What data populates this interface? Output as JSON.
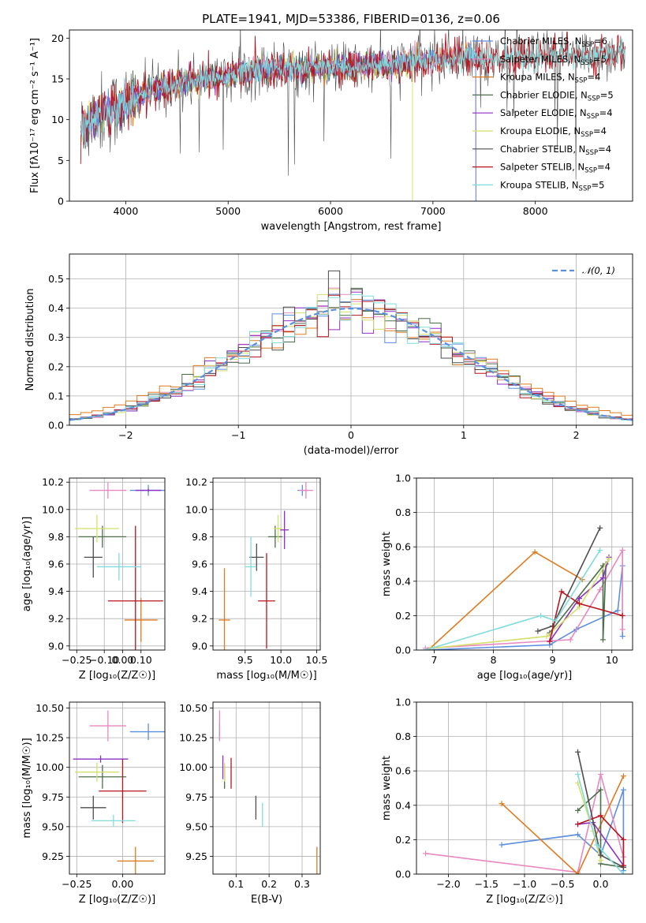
{
  "title": "PLATE=1941, MJD=53386, FIBERID=0136, z=0.06",
  "colors": {
    "Chabrier MILES": "#5b8fe0",
    "Salpeter MILES": "#e887c0",
    "Kroupa MILES": "#e07a1e",
    "Chabrier ELODIE": "#4b6e4b",
    "Salpeter ELODIE": "#8e2fc4",
    "Kroupa ELODIE": "#d4e06a",
    "Chabrier STELIB": "#4d4d4d",
    "Salpeter STELIB": "#b8141e",
    "Kroupa STELIB": "#80dcdc"
  },
  "chart_data": [
    {
      "type": "line",
      "panel": "spectrum",
      "xlabel": "wavelength [Angstrom, rest frame]",
      "ylabel": "Flux [fλ10⁻¹⁷ erg cm⁻² s⁻¹ A⁻¹]",
      "xlim": [
        3450,
        8950
      ],
      "ylim": [
        0,
        21
      ],
      "xticks": [
        4000,
        5000,
        6000,
        7000,
        8000
      ],
      "yticks": [
        0,
        5,
        10,
        15,
        20
      ],
      "legend_loc": "top-right",
      "legend": [
        {
          "label": "Chabrier MILES, N",
          "sub": "SSP",
          "tail": "=6",
          "color_key": "Chabrier MILES"
        },
        {
          "label": "Salpeter MILES, N",
          "sub": "SSP",
          "tail": "=5",
          "color_key": "Salpeter MILES"
        },
        {
          "label": "Kroupa MILES, N",
          "sub": "SSP",
          "tail": "=4",
          "color_key": "Kroupa MILES"
        },
        {
          "label": "Chabrier ELODIE, N",
          "sub": "SSP",
          "tail": "=5",
          "color_key": "Chabrier ELODIE"
        },
        {
          "label": "Salpeter ELODIE, N",
          "sub": "SSP",
          "tail": "=4",
          "color_key": "Salpeter ELODIE"
        },
        {
          "label": "Kroupa ELODIE, N",
          "sub": "SSP",
          "tail": "=4",
          "color_key": "Kroupa ELODIE"
        },
        {
          "label": "Chabrier STELIB, N",
          "sub": "SSP",
          "tail": "=4",
          "color_key": "Chabrier STELIB"
        },
        {
          "label": "Salpeter STELIB, N",
          "sub": "SSP",
          "tail": "=4",
          "color_key": "Salpeter STELIB"
        },
        {
          "label": "Kroupa STELIB, N",
          "sub": "SSP",
          "tail": "=5",
          "color_key": "Kroupa STELIB"
        }
      ],
      "continuum": [
        [
          3560,
          8.5
        ],
        [
          3700,
          10.5
        ],
        [
          3900,
          11.3
        ],
        [
          4000,
          12
        ],
        [
          4200,
          13.5
        ],
        [
          4500,
          14.5
        ],
        [
          4900,
          15.2
        ],
        [
          5300,
          16.2
        ],
        [
          5600,
          16.3
        ],
        [
          6000,
          16.4
        ],
        [
          6500,
          16.6
        ],
        [
          7000,
          17.3
        ],
        [
          7300,
          17.8
        ],
        [
          7600,
          17.4
        ],
        [
          8000,
          17.6
        ],
        [
          8500,
          17.9
        ],
        [
          8880,
          18.2
        ]
      ]
    },
    {
      "type": "line",
      "panel": "residual_histogram",
      "xlabel": "(data-model)/error",
      "ylabel": "Normed distribution",
      "xlim": [
        -2.5,
        2.5
      ],
      "ylim": [
        0,
        0.585
      ],
      "xticks": [
        -2,
        -1,
        0,
        1,
        2
      ],
      "yticks": [
        0.0,
        0.1,
        0.2,
        0.3,
        0.4,
        0.5
      ],
      "grid": true,
      "legend_loc": "top-right",
      "reference_curve": "𝒩(0, 1)"
    },
    {
      "type": "scatter",
      "panel": "age_vs_Z",
      "xlabel": "Z [log₁₀(Z/Z☉)]",
      "ylabel": "age  [log₁₀(age/yr)]",
      "xlim": [
        -0.29,
        0.23
      ],
      "ylim": [
        8.97,
        10.23
      ],
      "xticks": [
        -0.25,
        -0.1,
        0.0,
        0.1
      ],
      "yticks": [
        9.0,
        9.2,
        9.4,
        9.6,
        9.8,
        10.0,
        10.2
      ],
      "grid": true,
      "points": [
        {
          "key": "Chabrier MILES",
          "x": 0.14,
          "xerr": 0.1,
          "y": 10.14,
          "yerr": 0.04
        },
        {
          "key": "Salpeter MILES",
          "x": -0.08,
          "xerr": 0.1,
          "y": 10.14,
          "yerr": 0.06
        },
        {
          "key": "Kroupa MILES",
          "x": 0.1,
          "xerr": 0.09,
          "y": 9.19,
          "yerr": 0.16
        },
        {
          "key": "Chabrier ELODIE",
          "x": -0.11,
          "xerr": 0.13,
          "y": 9.8,
          "yerr": 0.08
        },
        {
          "key": "Salpeter ELODIE",
          "x": 0.14,
          "xerr": 0.07,
          "y": 10.14,
          "yerr": 0.01
        },
        {
          "key": "Kroupa ELODIE",
          "x": -0.14,
          "xerr": 0.12,
          "y": 9.86,
          "yerr": 0.1
        },
        {
          "key": "Chabrier STELIB",
          "x": -0.16,
          "xerr": 0.05,
          "y": 9.65,
          "yerr": 0.15
        },
        {
          "key": "Salpeter STELIB",
          "x": 0.07,
          "xerr": 0.15,
          "y": 9.33,
          "yerr": 0.55
        },
        {
          "key": "Kroupa STELIB",
          "x": -0.02,
          "xerr": 0.12,
          "y": 9.58,
          "yerr": 0.1
        }
      ]
    },
    {
      "type": "scatter",
      "panel": "age_vs_mass",
      "xlabel": "mass [log₁₀(M/M☉)]",
      "ylabel": "",
      "xlim": [
        9.05,
        10.55
      ],
      "ylim": [
        8.97,
        10.23
      ],
      "xticks": [
        9.5,
        10.0,
        10.5
      ],
      "yticks": [
        9.0,
        9.2,
        9.4,
        9.6,
        9.8,
        10.0,
        10.2
      ],
      "grid": true,
      "points": [
        {
          "key": "Chabrier MILES",
          "x": 10.3,
          "xerr": 0.07,
          "y": 10.14,
          "yerr": 0.04
        },
        {
          "key": "Salpeter MILES",
          "x": 10.35,
          "xerr": 0.1,
          "y": 10.14,
          "yerr": 0.06
        },
        {
          "key": "Kroupa MILES",
          "x": 9.21,
          "xerr": 0.08,
          "y": 9.19,
          "yerr": 0.38
        },
        {
          "key": "Chabrier ELODIE",
          "x": 9.92,
          "xerr": 0.1,
          "y": 9.8,
          "yerr": 0.08
        },
        {
          "key": "Salpeter ELODIE",
          "x": 10.05,
          "xerr": 0.06,
          "y": 9.85,
          "yerr": 0.14
        },
        {
          "key": "Kroupa ELODIE",
          "x": 9.96,
          "xerr": 0.06,
          "y": 9.86,
          "yerr": 0.1
        },
        {
          "key": "Chabrier STELIB",
          "x": 9.66,
          "xerr": 0.1,
          "y": 9.65,
          "yerr": 0.1
        },
        {
          "key": "Salpeter STELIB",
          "x": 9.8,
          "xerr": 0.12,
          "y": 9.33,
          "yerr": 0.35
        },
        {
          "key": "Kroupa STELIB",
          "x": 9.58,
          "xerr": 0.08,
          "y": 9.58,
          "yerr": 0.22
        }
      ]
    },
    {
      "type": "line",
      "panel": "mass_weight_vs_age",
      "xlabel": "age  [log₁₀(age/yr)]",
      "ylabel": "mass weight",
      "xlim": [
        6.7,
        10.35
      ],
      "ylim": [
        0,
        1.0
      ],
      "xticks": [
        7,
        8,
        9,
        10
      ],
      "yticks": [
        0.0,
        0.2,
        0.4,
        0.6,
        0.8,
        1.0
      ],
      "grid": true,
      "series": [
        {
          "key": "Chabrier MILES",
          "x": [
            6.85,
            8.95,
            9.4,
            10.1,
            10.18,
            10.18
          ],
          "y": [
            0.0,
            0.03,
            0.12,
            0.23,
            0.49,
            0.08
          ]
        },
        {
          "key": "Salpeter MILES",
          "x": [
            6.85,
            9.3,
            9.8,
            10.18,
            10.18
          ],
          "y": [
            0.01,
            0.06,
            0.35,
            0.58,
            0.12
          ]
        },
        {
          "key": "Kroupa MILES",
          "x": 6.9,
          "y": 0.0,
          "x_list": [
            6.9,
            8.7,
            9.5
          ],
          "y_list": [
            0.0,
            0.57,
            0.41
          ]
        },
        {
          "key": "Chabrier ELODIE",
          "x": [
            8.95,
            9.85,
            9.85,
            9.9
          ],
          "y": [
            0.1,
            0.49,
            0.06,
            0.5
          ]
        },
        {
          "key": "Salpeter ELODIE",
          "x": [
            8.95,
            9.45,
            9.85,
            9.95
          ],
          "y": [
            0.05,
            0.3,
            0.42,
            0.54
          ]
        },
        {
          "key": "Kroupa ELODIE",
          "x": [
            6.95,
            8.9,
            9.45,
            9.95
          ],
          "y": [
            0.01,
            0.08,
            0.25,
            0.53
          ]
        },
        {
          "key": "Chabrier STELIB",
          "x": [
            8.75,
            9.0,
            9.8
          ],
          "y": [
            0.11,
            0.14,
            0.71
          ]
        },
        {
          "key": "Salpeter STELIB",
          "x": [
            8.95,
            9.15,
            9.45,
            10.18
          ],
          "y": [
            0.05,
            0.34,
            0.27,
            0.2
          ]
        },
        {
          "key": "Kroupa STELIB",
          "x": [
            6.85,
            8.8,
            9.05,
            9.8
          ],
          "y": [
            0.0,
            0.2,
            0.17,
            0.58
          ]
        }
      ]
    },
    {
      "type": "scatter",
      "panel": "mass_vs_Z",
      "xlabel": "Z [log₁₀(Z/Z☉)]",
      "ylabel": "mass [log₁₀(M/M☉)]",
      "xlim": [
        -0.29,
        0.23
      ],
      "ylim": [
        9.1,
        10.55
      ],
      "xticks": [
        -0.25,
        0.0
      ],
      "yticks": [
        9.25,
        9.5,
        9.75,
        10.0,
        10.25,
        10.5
      ],
      "grid": true,
      "points": [
        {
          "key": "Chabrier MILES",
          "x": 0.14,
          "xerr": 0.1,
          "y": 10.3,
          "yerr": 0.07
        },
        {
          "key": "Salpeter MILES",
          "x": -0.08,
          "xerr": 0.1,
          "y": 10.35,
          "yerr": 0.13
        },
        {
          "key": "Kroupa MILES",
          "x": 0.07,
          "xerr": 0.1,
          "y": 9.21,
          "yerr": 0.12
        },
        {
          "key": "Chabrier ELODIE",
          "x": -0.11,
          "xerr": 0.13,
          "y": 9.92,
          "yerr": 0.1
        },
        {
          "key": "Salpeter ELODIE",
          "x": -0.12,
          "xerr": 0.15,
          "y": 10.07,
          "yerr": 0.03
        },
        {
          "key": "Kroupa ELODIE",
          "x": -0.14,
          "xerr": 0.12,
          "y": 9.96,
          "yerr": 0.08
        },
        {
          "key": "Chabrier STELIB",
          "x": -0.16,
          "xerr": 0.07,
          "y": 9.66,
          "yerr": 0.1
        },
        {
          "key": "Salpeter STELIB",
          "x": 0.0,
          "xerr": 0.13,
          "y": 9.8,
          "yerr": 0.27
        },
        {
          "key": "Kroupa STELIB",
          "x": -0.05,
          "xerr": 0.12,
          "y": 9.55,
          "yerr": 0.05
        }
      ]
    },
    {
      "type": "scatter",
      "panel": "mass_vs_EBV",
      "xlabel": "E(B-V)",
      "ylabel": "",
      "xlim": [
        0.03,
        0.355
      ],
      "ylim": [
        9.1,
        10.55
      ],
      "xticks": [
        0.1,
        0.2,
        0.3
      ],
      "yticks": [
        9.25,
        9.5,
        9.75,
        10.0,
        10.25,
        10.5
      ],
      "grid": true,
      "points": [
        {
          "key": "Chabrier MILES",
          "x": 0.05,
          "xerr": 0.0,
          "y": 10.3,
          "yerr": 0.07
        },
        {
          "key": "Salpeter MILES",
          "x": 0.05,
          "xerr": 0.0,
          "y": 10.35,
          "yerr": 0.13
        },
        {
          "key": "Kroupa MILES",
          "x": 0.345,
          "xerr": 0.0,
          "y": 9.21,
          "yerr": 0.12
        },
        {
          "key": "Chabrier ELODIE",
          "x": 0.065,
          "xerr": 0.0,
          "y": 9.92,
          "yerr": 0.1
        },
        {
          "key": "Salpeter ELODIE",
          "x": 0.06,
          "xerr": 0.0,
          "y": 10.0,
          "yerr": 0.1
        },
        {
          "key": "Kroupa ELODIE",
          "x": 0.065,
          "xerr": 0.0,
          "y": 9.96,
          "yerr": 0.08
        },
        {
          "key": "Chabrier STELIB",
          "x": 0.16,
          "xerr": 0.0,
          "y": 9.66,
          "yerr": 0.1
        },
        {
          "key": "Salpeter STELIB",
          "x": 0.085,
          "xerr": 0.0,
          "y": 9.95,
          "yerr": 0.13
        },
        {
          "key": "Kroupa STELIB",
          "x": 0.18,
          "xerr": 0.0,
          "y": 9.6,
          "yerr": 0.1
        }
      ]
    },
    {
      "type": "line",
      "panel": "mass_weight_vs_Z",
      "xlabel": "Z [log₁₀(Z/Z☉)]",
      "ylabel": "mass weight",
      "xlim": [
        -2.42,
        0.42
      ],
      "ylim": [
        0,
        1.0
      ],
      "xticks": [
        -2.0,
        -1.5,
        -1.0,
        -0.5,
        0.0
      ],
      "yticks": [
        0.0,
        0.2,
        0.4,
        0.6,
        0.8,
        1.0
      ],
      "grid": true,
      "series": [
        {
          "key": "Chabrier MILES",
          "x": [
            -1.3,
            -0.3,
            0.0,
            0.3,
            0.3
          ],
          "y": [
            0.17,
            0.23,
            0.11,
            0.49,
            0.02
          ]
        },
        {
          "key": "Salpeter MILES",
          "x": [
            -2.3,
            -0.3,
            0.0,
            0.3
          ],
          "y": [
            0.12,
            0.01,
            0.58,
            0.1
          ]
        },
        {
          "key": "Kroupa MILES",
          "x": [
            -1.3,
            -0.3,
            0.3
          ],
          "y": [
            0.41,
            0.0,
            0.57
          ]
        },
        {
          "key": "Chabrier ELODIE",
          "x": [
            -0.3,
            0.0,
            0.0,
            0.3
          ],
          "y": [
            0.37,
            0.49,
            0.06,
            0.04
          ]
        },
        {
          "key": "Salpeter ELODIE",
          "x": [
            -0.3,
            -0.1,
            0.3
          ],
          "y": [
            0.29,
            0.3,
            0.05
          ]
        },
        {
          "key": "Kroupa ELODIE",
          "x": [
            -0.3,
            -0.1,
            0.0
          ],
          "y": [
            0.53,
            0.25,
            0.08
          ]
        },
        {
          "key": "Chabrier STELIB",
          "x": [
            -0.3,
            0.0,
            0.3
          ],
          "y": [
            0.71,
            0.11,
            0.04
          ]
        },
        {
          "key": "Salpeter STELIB",
          "x": [
            -0.3,
            0.0,
            0.3,
            0.3
          ],
          "y": [
            0.29,
            0.34,
            0.2,
            0.05
          ]
        },
        {
          "key": "Kroupa STELIB",
          "x": [
            -0.3,
            -0.05,
            0.3
          ],
          "y": [
            0.58,
            0.17,
            0.0
          ]
        }
      ]
    }
  ]
}
